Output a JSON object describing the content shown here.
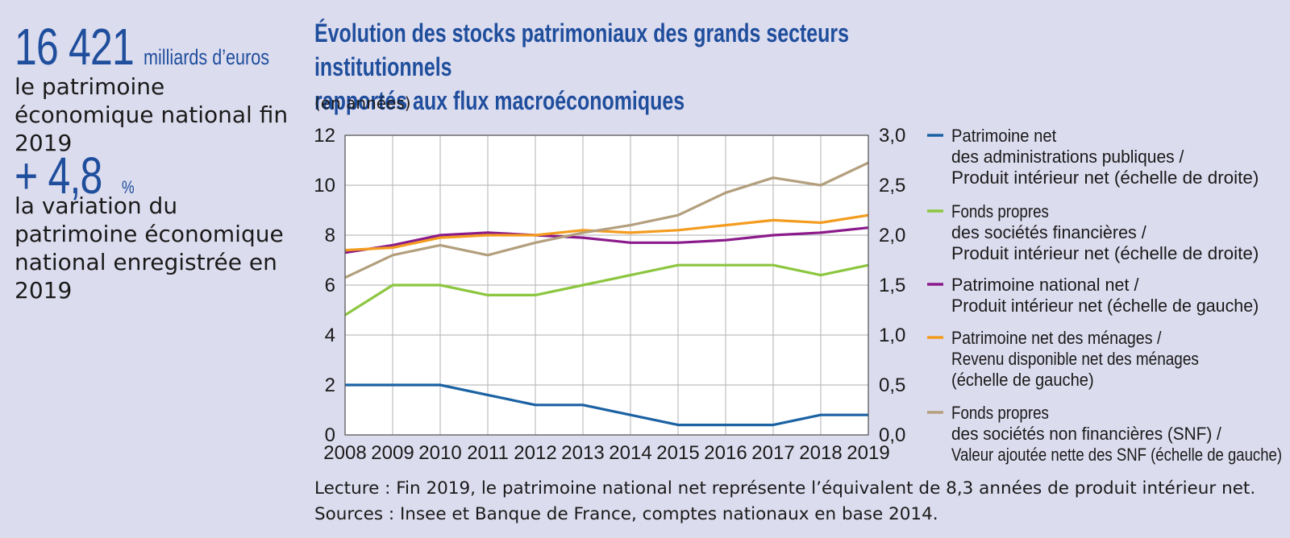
{
  "kpis": [
    {
      "value": "16 421",
      "unit": "milliards d’euros",
      "text": "le patrimoine économique national fin 2019"
    },
    {
      "value": "+ 4,8",
      "unit": "%",
      "text": "la variation du patrimoine économique national enregistrée en 2019"
    }
  ],
  "title_line1": "Évolution des stocks patrimoniaux des grands secteurs institutionnels",
  "title_line2": "rapportés aux flux macroéconomiques",
  "unit_note": "(en années)",
  "footnote_reading": "Lecture : Fin 2019, le patrimoine national net représente l’équivalent de 8,3 années de produit intérieur net.",
  "footnote_sources": "Sources : Insee et Banque de France, comptes nationaux en base 2014.",
  "chart_data": {
    "type": "line",
    "x": [
      2008,
      2009,
      2010,
      2011,
      2012,
      2013,
      2014,
      2015,
      2016,
      2017,
      2018,
      2019
    ],
    "y_left": {
      "range": [
        0,
        12
      ],
      "ticks": [
        "0",
        "2",
        "4",
        "6",
        "8",
        "10",
        "12"
      ]
    },
    "y_right": {
      "range": [
        0,
        3
      ],
      "ticks": [
        "0,0",
        "0,5",
        "1,0",
        "1,5",
        "2,0",
        "2,5",
        "3,0"
      ]
    },
    "grid": true,
    "legend_position": "right",
    "series": [
      {
        "name_lines": [
          "Patrimoine net",
          "des administrations publiques /",
          "Produit intérieur net (échelle de droite)"
        ],
        "axis": "right",
        "color": "#1b62a3",
        "values": [
          0.5,
          0.5,
          0.5,
          0.4,
          0.3,
          0.3,
          0.2,
          0.1,
          0.1,
          0.1,
          0.2,
          0.2
        ]
      },
      {
        "name_lines": [
          "Fonds propres",
          "des sociétés financières /",
          "Produit intérieur net (échelle de droite)"
        ],
        "axis": "right",
        "color": "#8cc63f",
        "values": [
          1.2,
          1.5,
          1.5,
          1.4,
          1.4,
          1.5,
          1.6,
          1.7,
          1.7,
          1.7,
          1.6,
          1.7
        ]
      },
      {
        "name_lines": [
          "Patrimoine national net /",
          "Produit intérieur net (échelle de gauche)"
        ],
        "axis": "left",
        "color": "#8b1a8b",
        "values": [
          7.3,
          7.6,
          8.0,
          8.1,
          8.0,
          7.9,
          7.7,
          7.7,
          7.8,
          8.0,
          8.1,
          8.3
        ]
      },
      {
        "name_lines": [
          "Patrimoine net des ménages /",
          "Revenu disponible net des ménages",
          "(échelle de gauche)"
        ],
        "axis": "left",
        "color": "#f39c1f",
        "values": [
          7.4,
          7.5,
          7.9,
          8.0,
          8.0,
          8.2,
          8.1,
          8.2,
          8.4,
          8.6,
          8.5,
          8.8
        ]
      },
      {
        "name_lines": [
          "Fonds propres",
          "des sociétés non financières (SNF) /",
          "Valeur ajoutée nette des SNF (échelle de gauche)"
        ],
        "axis": "left",
        "color": "#b39f7d",
        "values": [
          6.3,
          7.2,
          7.6,
          7.2,
          7.7,
          8.1,
          8.4,
          8.8,
          9.7,
          10.3,
          10.0,
          10.9
        ]
      }
    ]
  }
}
